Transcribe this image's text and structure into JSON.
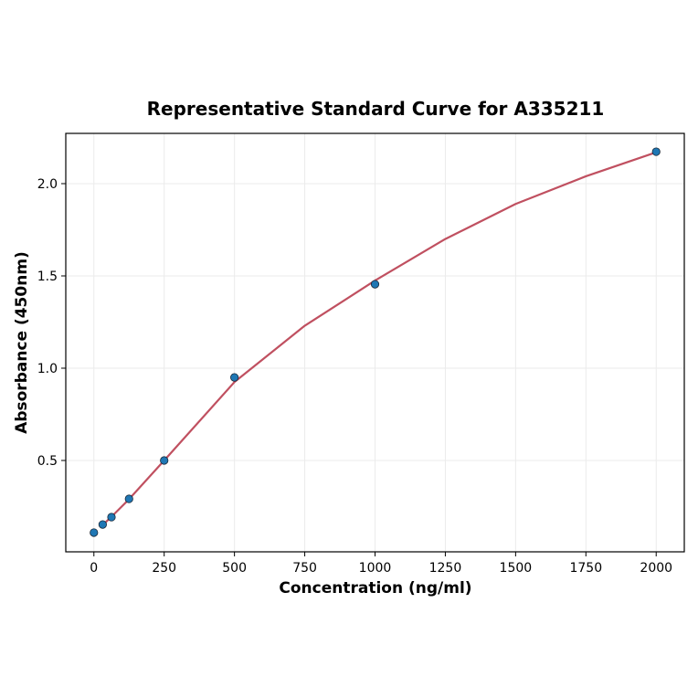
{
  "chart_data": {
    "type": "scatter",
    "title": "Representative Standard Curve for A335211",
    "xlabel": "Concentration (ng/ml)",
    "ylabel": "Absorbance (450nm)",
    "xlim": [
      -100,
      2100
    ],
    "ylim": [
      0,
      2.27
    ],
    "xticks": [
      0,
      250,
      500,
      750,
      1000,
      1250,
      1500,
      1750,
      2000
    ],
    "yticks": [
      0.5,
      1.0,
      1.5,
      2.0
    ],
    "ytick_labels": [
      "0.5",
      "1.0",
      "1.5",
      "2.0"
    ],
    "grid": true,
    "points": {
      "x": [
        0,
        31.25,
        62.5,
        125,
        250,
        500,
        1000,
        2000
      ],
      "y": [
        0.109,
        0.153,
        0.193,
        0.292,
        0.5,
        0.95,
        1.455,
        2.173
      ],
      "color": "#1f77b4"
    },
    "fit_curve": {
      "x": [
        31.25,
        62.5,
        125,
        250,
        500,
        750,
        1000,
        1250,
        1500,
        1750,
        2000
      ],
      "y": [
        0.15,
        0.195,
        0.29,
        0.5,
        0.925,
        1.23,
        1.475,
        1.7,
        1.89,
        2.04,
        2.17
      ],
      "color": "#c05060"
    }
  }
}
